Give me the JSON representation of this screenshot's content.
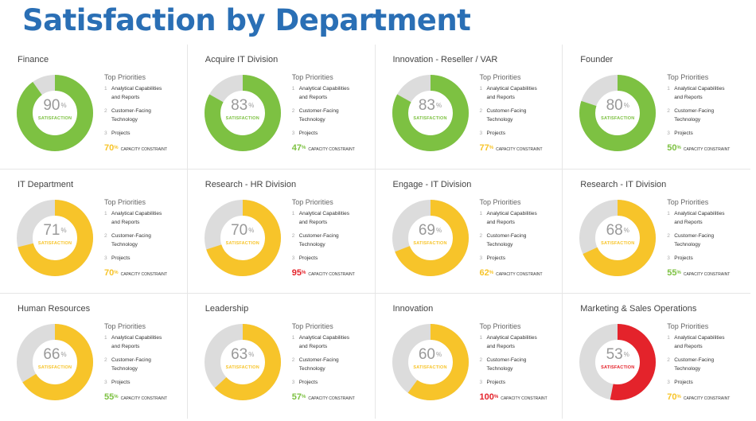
{
  "page": {
    "title": "Satisfaction by Department"
  },
  "colors": {
    "green": "#7dc142",
    "yellow": "#f7c42a",
    "red": "#e4232b",
    "track": "#dcdcdc",
    "title_blue": "#2a6fb5"
  },
  "labels": {
    "priorities_title": "Top Priorities",
    "satisfaction_label": "SATISFACTION",
    "capacity_label": "CAPACITY CONSTRAINT",
    "pct_symbol": "%"
  },
  "departments": [
    {
      "name": "Finance",
      "satisfaction": 90,
      "satisfaction_color": "green",
      "capacity": 70,
      "capacity_color": "yellow",
      "priorities": [
        "Analytical Capabilities\nand Reports",
        "Customer-Facing\nTechnology",
        "Projects"
      ]
    },
    {
      "name": "Acquire IT Division",
      "satisfaction": 83,
      "satisfaction_color": "green",
      "capacity": 47,
      "capacity_color": "green",
      "priorities": [
        "Analytical Capabilities\nand Reports",
        "Customer-Facing\nTechnology",
        "Projects"
      ]
    },
    {
      "name": "Innovation - Reseller / VAR",
      "satisfaction": 83,
      "satisfaction_color": "green",
      "capacity": 77,
      "capacity_color": "yellow",
      "priorities": [
        "Analytical Capabilities\nand Reports",
        "Customer-Facing\nTechnology",
        "Projects"
      ]
    },
    {
      "name": "Founder",
      "satisfaction": 80,
      "satisfaction_color": "green",
      "capacity": 50,
      "capacity_color": "green",
      "priorities": [
        "Analytical Capabilities\nand Reports",
        "Customer-Facing\nTechnology",
        "Projects"
      ]
    },
    {
      "name": "IT Department",
      "satisfaction": 71,
      "satisfaction_color": "yellow",
      "capacity": 70,
      "capacity_color": "yellow",
      "priorities": [
        "Analytical Capabilities\nand Reports",
        "Customer-Facing\nTechnology",
        "Projects"
      ]
    },
    {
      "name": "Research - HR Division",
      "satisfaction": 70,
      "satisfaction_color": "yellow",
      "capacity": 95,
      "capacity_color": "red",
      "priorities": [
        "Analytical Capabilities\nand Reports",
        "Customer-Facing\nTechnology",
        "Projects"
      ]
    },
    {
      "name": "Engage - IT Division",
      "satisfaction": 69,
      "satisfaction_color": "yellow",
      "capacity": 62,
      "capacity_color": "yellow",
      "priorities": [
        "Analytical Capabilities\nand Reports",
        "Customer-Facing\nTechnology",
        "Projects"
      ]
    },
    {
      "name": "Research - IT Division",
      "satisfaction": 68,
      "satisfaction_color": "yellow",
      "capacity": 55,
      "capacity_color": "green",
      "priorities": [
        "Analytical Capabilities\nand Reports",
        "Customer-Facing\nTechnology",
        "Projects"
      ]
    },
    {
      "name": "Human Resources",
      "satisfaction": 66,
      "satisfaction_color": "yellow",
      "capacity": 55,
      "capacity_color": "green",
      "priorities": [
        "Analytical Capabilities\nand Reports",
        "Customer-Facing\nTechnology",
        "Projects"
      ]
    },
    {
      "name": "Leadership",
      "satisfaction": 63,
      "satisfaction_color": "yellow",
      "capacity": 57,
      "capacity_color": "green",
      "priorities": [
        "Analytical Capabilities\nand Reports",
        "Customer-Facing\nTechnology",
        "Projects"
      ]
    },
    {
      "name": "Innovation",
      "satisfaction": 60,
      "satisfaction_color": "yellow",
      "capacity": 100,
      "capacity_color": "red",
      "priorities": [
        "Analytical Capabilities\nand Reports",
        "Customer-Facing\nTechnology",
        "Projects"
      ]
    },
    {
      "name": "Marketing & Sales Operations",
      "satisfaction": 53,
      "satisfaction_color": "red",
      "capacity": 70,
      "capacity_color": "yellow",
      "priorities": [
        "Analytical Capabilities\nand Reports",
        "Customer-Facing\nTechnology",
        "Projects"
      ]
    }
  ]
}
